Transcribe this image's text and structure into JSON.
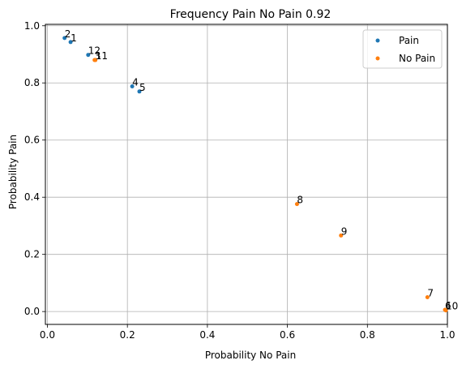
{
  "chart_data": {
    "type": "scatter",
    "title": "Frequency Pain No Pain 0.92",
    "xlabel": "Probability No Pain",
    "ylabel": "Probability Pain",
    "xlim": [
      -0.005,
      1.0
    ],
    "ylim": [
      -0.045,
      1.005
    ],
    "xticks": [
      "0.0",
      "0.2",
      "0.4",
      "0.6",
      "0.8",
      "1.0"
    ],
    "yticks": [
      "0.0",
      "0.2",
      "0.4",
      "0.6",
      "0.8",
      "1.0"
    ],
    "xtick_values": [
      0.0,
      0.2,
      0.4,
      0.6,
      0.8,
      1.0
    ],
    "ytick_values": [
      0.0,
      0.2,
      0.4,
      0.6,
      0.8,
      1.0
    ],
    "grid": true,
    "legend_position": "top-right",
    "series": [
      {
        "name": "Pain",
        "color": "#1f77b4",
        "points": [
          {
            "label": "2",
            "x": 0.043,
            "y": 0.957
          },
          {
            "label": "1",
            "x": 0.058,
            "y": 0.943
          },
          {
            "label": "12",
            "x": 0.102,
            "y": 0.898
          },
          {
            "label": "4",
            "x": 0.212,
            "y": 0.788
          },
          {
            "label": "5",
            "x": 0.23,
            "y": 0.77
          }
        ]
      },
      {
        "name": "No Pain",
        "color": "#ff7f0e",
        "points": [
          {
            "label": "3",
            "x": 0.118,
            "y": 0.88
          },
          {
            "label": "11",
            "x": 0.12,
            "y": 0.88
          },
          {
            "label": "8",
            "x": 0.624,
            "y": 0.376
          },
          {
            "label": "9",
            "x": 0.734,
            "y": 0.266
          },
          {
            "label": "7",
            "x": 0.95,
            "y": 0.05
          },
          {
            "label": "6",
            "x": 0.994,
            "y": 0.006
          },
          {
            "label": "10",
            "x": 0.996,
            "y": 0.004
          }
        ]
      }
    ]
  }
}
